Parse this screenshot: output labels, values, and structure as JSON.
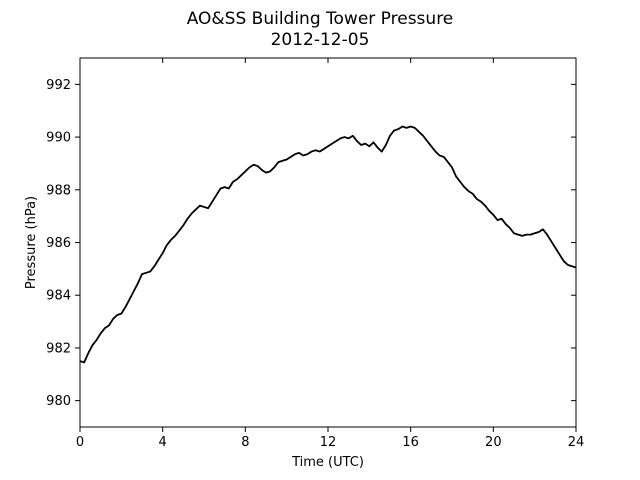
{
  "chart_data": {
    "type": "line",
    "title": "AO&SS Building Tower Pressure",
    "subtitle": "2012-12-05",
    "xlabel": "Time (UTC)",
    "ylabel": "Pressure (hPa)",
    "xlim": [
      0,
      24
    ],
    "ylim": [
      979,
      993
    ],
    "xticks": [
      0,
      4,
      8,
      12,
      16,
      20,
      24
    ],
    "yticks": [
      980,
      982,
      984,
      986,
      988,
      990,
      992
    ],
    "grid": false,
    "legend": "none",
    "series": [
      {
        "color": "#000000",
        "x": [
          0,
          0.2,
          0.4,
          0.6,
          0.8,
          1.0,
          1.2,
          1.4,
          1.6,
          1.8,
          2.0,
          2.2,
          2.4,
          2.6,
          2.8,
          3.0,
          3.2,
          3.4,
          3.6,
          3.8,
          4.0,
          4.2,
          4.4,
          4.6,
          4.8,
          5.0,
          5.2,
          5.4,
          5.6,
          5.8,
          6.0,
          6.2,
          6.4,
          6.6,
          6.8,
          7.0,
          7.2,
          7.4,
          7.6,
          7.8,
          8.0,
          8.2,
          8.4,
          8.6,
          8.8,
          9.0,
          9.2,
          9.4,
          9.6,
          9.8,
          10.0,
          10.2,
          10.4,
          10.6,
          10.8,
          11.0,
          11.2,
          11.4,
          11.6,
          11.8,
          12.0,
          12.2,
          12.4,
          12.6,
          12.8,
          13.0,
          13.2,
          13.4,
          13.6,
          13.8,
          14.0,
          14.2,
          14.4,
          14.6,
          14.8,
          15.0,
          15.2,
          15.4,
          15.6,
          15.8,
          16.0,
          16.2,
          16.4,
          16.6,
          16.8,
          17.0,
          17.2,
          17.4,
          17.6,
          17.8,
          18.0,
          18.2,
          18.4,
          18.6,
          18.8,
          19.0,
          19.2,
          19.4,
          19.6,
          19.8,
          20.0,
          20.2,
          20.4,
          20.6,
          20.8,
          21.0,
          21.2,
          21.4,
          21.6,
          21.8,
          22.0,
          22.2,
          22.4,
          22.6,
          22.8,
          23.0,
          23.2,
          23.4,
          23.6,
          23.8,
          24.0
        ],
        "y": [
          981.5,
          981.45,
          981.8,
          982.1,
          982.3,
          982.55,
          982.75,
          982.85,
          983.1,
          983.25,
          983.3,
          983.55,
          983.85,
          984.15,
          984.45,
          984.8,
          984.85,
          984.9,
          985.1,
          985.35,
          985.6,
          985.9,
          986.1,
          986.25,
          986.45,
          986.65,
          986.9,
          987.1,
          987.25,
          987.4,
          987.35,
          987.3,
          987.55,
          987.8,
          988.05,
          988.1,
          988.05,
          988.3,
          988.4,
          988.55,
          988.7,
          988.85,
          988.95,
          988.9,
          988.75,
          988.65,
          988.7,
          988.85,
          989.05,
          989.1,
          989.15,
          989.25,
          989.35,
          989.4,
          989.3,
          989.35,
          989.45,
          989.5,
          989.45,
          989.55,
          989.65,
          989.75,
          989.85,
          989.95,
          990.0,
          989.95,
          990.05,
          989.85,
          989.7,
          989.75,
          989.65,
          989.8,
          989.6,
          989.45,
          989.7,
          990.05,
          990.25,
          990.3,
          990.4,
          990.35,
          990.4,
          990.35,
          990.2,
          990.05,
          989.85,
          989.65,
          989.45,
          989.3,
          989.25,
          989.05,
          988.85,
          988.5,
          988.3,
          988.1,
          987.95,
          987.85,
          987.65,
          987.55,
          987.4,
          987.2,
          987.05,
          986.85,
          986.9,
          986.7,
          986.55,
          986.35,
          986.3,
          986.25,
          986.3,
          986.3,
          986.35,
          986.4,
          986.5,
          986.3,
          986.05,
          985.8,
          985.55,
          985.3,
          985.15,
          985.1,
          985.05
        ]
      }
    ]
  }
}
